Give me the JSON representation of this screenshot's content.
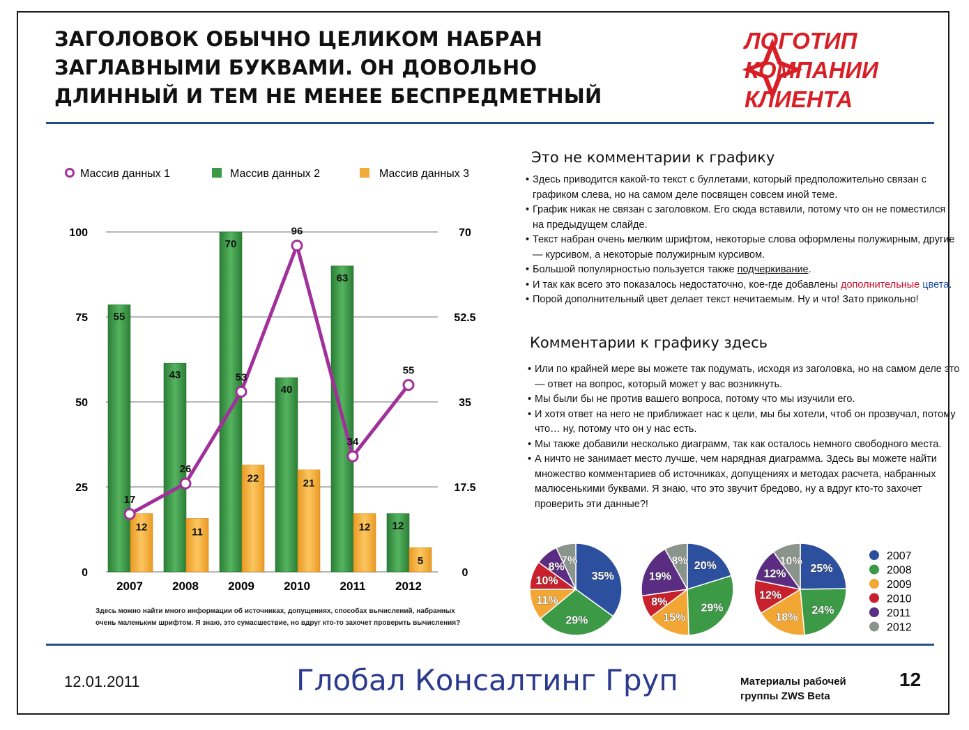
{
  "header": {
    "title_lines": [
      "ЗАГОЛОВОК ОБЫЧНО ЦЕЛИКОМ НАБРАН",
      "ЗАГЛАВНЫМИ БУКВАМИ. ОН ДОВОЛЬНО",
      "ДЛИННЫЙ И ТЕМ НЕ МЕНЕЕ БЕСПРЕДМЕТНЫЙ"
    ],
    "logo_lines": [
      "ЛОГОТИП",
      "КОМПАНИИ",
      "КЛИЕНТА"
    ]
  },
  "colors": {
    "accent": "#1f4e8c",
    "logo": "#d81f26",
    "bar_green": "#3c9a47",
    "bar_orange": "#f2ab3a",
    "line_purple": "#a0309a"
  },
  "chart_data": [
    {
      "type": "bar",
      "categories": [
        "2007",
        "2008",
        "2009",
        "2010",
        "2011",
        "2012"
      ],
      "series": [
        {
          "name": "Массив данных 1",
          "kind": "line",
          "axis": "left",
          "values": [
            17,
            26,
            53,
            96,
            34,
            55
          ],
          "labels": [
            "17",
            "26",
            "53",
            "96",
            "34",
            "55"
          ]
        },
        {
          "name": "Массив данных 2",
          "kind": "bar",
          "axis": "right",
          "values": [
            55,
            43,
            70,
            40,
            63,
            12
          ],
          "labels": [
            "55",
            "43",
            "70",
            "40",
            "63",
            "12"
          ]
        },
        {
          "name": "Массив данных 3",
          "kind": "bar",
          "axis": "right",
          "values": [
            12,
            11,
            22,
            21,
            12,
            5
          ],
          "labels": [
            "12",
            "11",
            "22",
            "21",
            "12",
            "5"
          ]
        }
      ],
      "y_left": {
        "ylim": [
          0,
          100
        ],
        "ticks": [
          "0",
          "25",
          "50",
          "75",
          "100"
        ]
      },
      "y_right": {
        "ylim": [
          0,
          70
        ],
        "ticks": [
          "0",
          "17.5",
          "35",
          "52.5",
          "70"
        ]
      },
      "legend_position": "top",
      "grid": true
    },
    {
      "type": "pie",
      "slices": [
        {
          "year": "2007",
          "value": 35,
          "label": "35%"
        },
        {
          "year": "2008",
          "value": 29,
          "label": "29%"
        },
        {
          "year": "2009",
          "value": 11,
          "label": "11%"
        },
        {
          "year": "2010",
          "value": 10,
          "label": "10%"
        },
        {
          "year": "2011",
          "value": 8,
          "label": "8%"
        },
        {
          "year": "2012",
          "value": 7,
          "label": "7%"
        }
      ]
    },
    {
      "type": "pie",
      "slices": [
        {
          "year": "2007",
          "value": 20,
          "label": "20%"
        },
        {
          "year": "2008",
          "value": 29,
          "label": "29%"
        },
        {
          "year": "2009",
          "value": 15,
          "label": "15%"
        },
        {
          "year": "2010",
          "value": 8,
          "label": "8%"
        },
        {
          "year": "2011",
          "value": 19,
          "label": "19%"
        },
        {
          "year": "2012",
          "value": 8,
          "label": "8%"
        }
      ]
    },
    {
      "type": "pie",
      "slices": [
        {
          "year": "2007",
          "value": 25,
          "label": "25%"
        },
        {
          "year": "2008",
          "value": 24,
          "label": "24%"
        },
        {
          "year": "2009",
          "value": 18,
          "label": "18%"
        },
        {
          "year": "2010",
          "value": 12,
          "label": "12%"
        },
        {
          "year": "2011",
          "value": 12,
          "label": "12%"
        },
        {
          "year": "2012",
          "value": 10,
          "label": "10%"
        }
      ]
    }
  ],
  "pie_legend": [
    {
      "year": "2007",
      "color": "#2c4f9e"
    },
    {
      "year": "2008",
      "color": "#3c9a47"
    },
    {
      "year": "2009",
      "color": "#f2a634"
    },
    {
      "year": "2010",
      "color": "#c8202c"
    },
    {
      "year": "2011",
      "color": "#5b2d82"
    },
    {
      "year": "2012",
      "color": "#8a948c"
    }
  ],
  "footnote": "Здесь можно найти много информации об источниках, допущениях, способах вычислений, набранных очень маленьким шрифтом. Я знаю, это сумасшествие, но вдруг кто-то захочет проверить вычисления?",
  "section1": {
    "heading": "Это не комментарии к графику",
    "b1": "Здесь приводится какой-то текст с буллетами, который предположительно связан с графиком слева, но на самом деле посвящен совсем иной теме.",
    "b2": "График никак не связан с заголовком. Его сюда вставили, потому что он не поместился на предыдущем слайде.",
    "b3": "Текст набран очень мелким шрифтом, некоторые слова оформлены полужирным, другие — курсивом, а некоторые полужирным курсивом.",
    "b4_pre": "Большой популярностью пользуется также ",
    "b4_u": "подчеркивание",
    "b4_post": ".",
    "b5_pre": "И так как всего это показалось недостаточно, кое-где добавлены ",
    "b5_red": "дополнительные",
    "b5_sp": " ",
    "b5_blue": "цвета",
    "b5_post": ".",
    "b6": "Порой дополнительный цвет делает текст нечитаемым. Ну и что! Зато прикольно!"
  },
  "section2": {
    "heading": "Комментарии к графику здесь",
    "bullets": [
      "Или по крайней мере вы можете так подумать, исходя из заголовка, но на самом деле это — ответ на вопрос, который может у вас возникнуть.",
      "Мы были бы не против вашего вопроса, потому что мы изучили его.",
      "И хотя ответ на него не приближает нас к цели, мы бы хотели, чтоб он прозвучал, потому что… ну, потому что он у нас есть.",
      "Мы также добавили несколько диаграмм, так как осталось немного свободного места.",
      "А ничто не занимает место лучше, чем нарядная диаграмма. Здесь вы можете найти множество комментариев об источниках, допущениях и методах расчета, набранных малюсенькими буквами. Я знаю, что это звучит бредово, ну а вдруг кто-то захочет проверить эти данные?!"
    ]
  },
  "footer": {
    "date": "12.01.2011",
    "company": "Глобал Консалтинг Груп",
    "materials_lines": [
      "Материалы рабочей",
      "группы ZWS Beta"
    ],
    "page": "12"
  }
}
